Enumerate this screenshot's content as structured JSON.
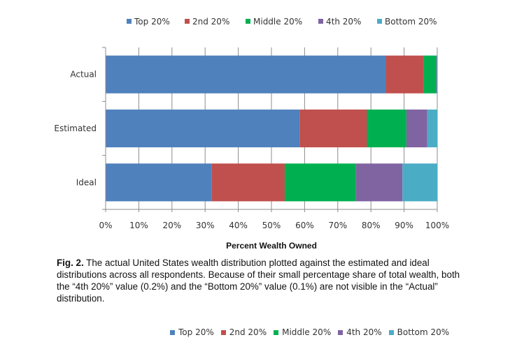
{
  "chart_data": {
    "type": "bar",
    "orientation": "horizontal",
    "stacked": true,
    "categories": [
      "Actual",
      "Estimated",
      "Ideal"
    ],
    "series": [
      {
        "name": "Top 20%",
        "color": "#4F81BD",
        "values": [
          84.5,
          58.5,
          32.0
        ]
      },
      {
        "name": "2nd 20%",
        "color": "#C0504D",
        "values": [
          11.3,
          20.3,
          22.0
        ]
      },
      {
        "name": "Middle 20%",
        "color": "#00B050",
        "values": [
          3.9,
          11.9,
          21.5
        ]
      },
      {
        "name": "4th 20%",
        "color": "#8064A2",
        "values": [
          0.2,
          6.3,
          14.0
        ]
      },
      {
        "name": "Bottom 20%",
        "color": "#4BACC6",
        "values": [
          0.1,
          3.0,
          10.5
        ]
      }
    ],
    "xlabel": "Percent Wealth Owned",
    "xlim": [
      0,
      100
    ],
    "xticks": [
      "0%",
      "10%",
      "20%",
      "30%",
      "40%",
      "50%",
      "60%",
      "70%",
      "80%",
      "90%",
      "100%"
    ],
    "grid": true,
    "legend": "top"
  },
  "caption": {
    "label": "Fig. 2.",
    "text": " The actual United States wealth distribution plotted against the estimated and ideal distributions across all respondents. Because of their small percentage share of total wealth, both the “4th 20%” value (0.2%) and the “Bottom 20%” value (0.1%) are not visible in the “Actual” distribution."
  },
  "legend_bottom": {
    "colors": [
      "#4F81BD",
      "#C0504D",
      "#00B050",
      "#8064A2",
      "#4BACC6"
    ],
    "labels": [
      "Top 20%",
      "2nd 20%",
      "Middle 20%",
      "4th 20%",
      "Bottom 20%"
    ]
  }
}
